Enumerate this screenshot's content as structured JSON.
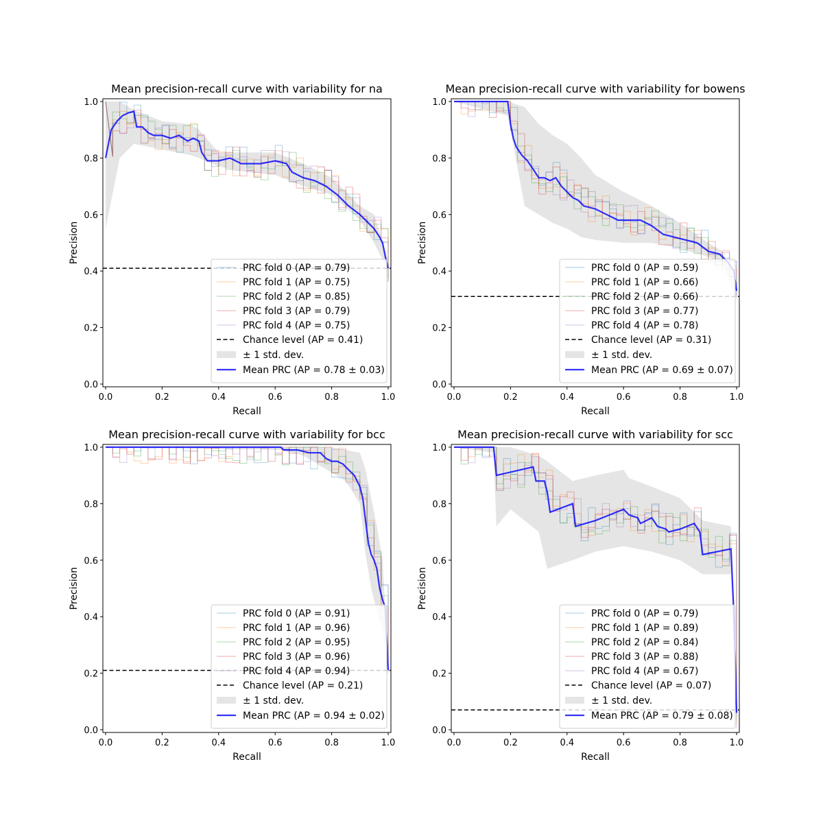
{
  "figure": {
    "background": "#ffffff",
    "colors": {
      "fold0": "#1f77b4",
      "fold1": "#ff7f0e",
      "fold2": "#2ca02c",
      "fold3": "#d62728",
      "fold4": "#9467bd",
      "mean": "#0000ff",
      "chance": "#000000",
      "band": "#cccccc"
    }
  },
  "chart_data": [
    {
      "type": "line",
      "title": "Mean precision-recall curve with variability for na",
      "xlabel": "Recall",
      "ylabel": "Precision",
      "xlim": [
        0,
        1
      ],
      "ylim": [
        0,
        1
      ],
      "xticks": [
        "0.0",
        "0.2",
        "0.4",
        "0.6",
        "0.8",
        "1.0"
      ],
      "yticks": [
        "0.0",
        "0.2",
        "0.4",
        "0.6",
        "0.8",
        "1.0"
      ],
      "legend_position": "lower right",
      "legend": [
        "PRC fold 0 (AP = 0.79)",
        "PRC fold 1 (AP = 0.75)",
        "PRC fold 2 (AP = 0.85)",
        "PRC fold 3 (AP = 0.79)",
        "PRC fold 4 (AP = 0.75)",
        "Chance level (AP = 0.41)",
        "± 1 std. dev.",
        "Mean PRC (AP = 0.78 ± 0.03)"
      ],
      "chance_level": 0.41,
      "mean": {
        "x": [
          0,
          0.02,
          0.04,
          0.06,
          0.08,
          0.1,
          0.11,
          0.13,
          0.15,
          0.17,
          0.2,
          0.23,
          0.26,
          0.29,
          0.31,
          0.33,
          0.34,
          0.36,
          0.4,
          0.44,
          0.48,
          0.5,
          0.55,
          0.6,
          0.64,
          0.66,
          0.7,
          0.74,
          0.78,
          0.82,
          0.86,
          0.9,
          0.93,
          0.95,
          0.97,
          0.98,
          0.99,
          1.0
        ],
        "y": [
          0.8,
          0.9,
          0.93,
          0.95,
          0.96,
          0.965,
          0.91,
          0.91,
          0.89,
          0.88,
          0.88,
          0.87,
          0.88,
          0.86,
          0.87,
          0.86,
          0.82,
          0.79,
          0.79,
          0.8,
          0.78,
          0.78,
          0.78,
          0.79,
          0.78,
          0.75,
          0.73,
          0.72,
          0.7,
          0.67,
          0.63,
          0.6,
          0.57,
          0.55,
          0.52,
          0.5,
          0.45,
          0.41
        ]
      },
      "std_upper": {
        "x": [
          0,
          0.05,
          0.1,
          0.2,
          0.3,
          0.33,
          0.4,
          0.5,
          0.6,
          0.7,
          0.8,
          0.9,
          0.95,
          1.0
        ],
        "y": [
          1.0,
          1.0,
          0.97,
          0.93,
          0.92,
          0.9,
          0.82,
          0.82,
          0.82,
          0.78,
          0.73,
          0.63,
          0.6,
          0.44
        ]
      },
      "std_lower": {
        "x": [
          0,
          0.05,
          0.1,
          0.2,
          0.3,
          0.33,
          0.4,
          0.5,
          0.6,
          0.7,
          0.8,
          0.9,
          0.95,
          1.0
        ],
        "y": [
          0.55,
          0.8,
          0.85,
          0.83,
          0.81,
          0.8,
          0.77,
          0.75,
          0.74,
          0.7,
          0.67,
          0.58,
          0.5,
          0.4
        ]
      }
    },
    {
      "type": "line",
      "title": "Mean precision-recall curve with variability for bowens",
      "xlabel": "Recall",
      "ylabel": "Precision",
      "xlim": [
        0,
        1
      ],
      "ylim": [
        0,
        1
      ],
      "xticks": [
        "0.0",
        "0.2",
        "0.4",
        "0.6",
        "0.8",
        "1.0"
      ],
      "yticks": [
        "0.0",
        "0.2",
        "0.4",
        "0.6",
        "0.8",
        "1.0"
      ],
      "legend_position": "lower right",
      "legend": [
        "PRC fold 0 (AP = 0.59)",
        "PRC fold 1 (AP = 0.66)",
        "PRC fold 2 (AP = 0.66)",
        "PRC fold 3 (AP = 0.77)",
        "PRC fold 4 (AP = 0.78)",
        "Chance level (AP = 0.31)",
        "± 1 std. dev.",
        "Mean PRC (AP = 0.69 ± 0.07)"
      ],
      "chance_level": 0.31,
      "mean": {
        "x": [
          0,
          0.19,
          0.2,
          0.21,
          0.22,
          0.24,
          0.26,
          0.28,
          0.3,
          0.32,
          0.34,
          0.36,
          0.38,
          0.4,
          0.42,
          0.44,
          0.46,
          0.5,
          0.54,
          0.58,
          0.62,
          0.66,
          0.7,
          0.74,
          0.78,
          0.82,
          0.86,
          0.9,
          0.94,
          0.97,
          0.99,
          1.0
        ],
        "y": [
          1.0,
          1.0,
          0.92,
          0.87,
          0.84,
          0.81,
          0.79,
          0.76,
          0.73,
          0.73,
          0.72,
          0.73,
          0.7,
          0.68,
          0.66,
          0.65,
          0.63,
          0.62,
          0.6,
          0.58,
          0.58,
          0.58,
          0.56,
          0.53,
          0.52,
          0.51,
          0.5,
          0.47,
          0.46,
          0.43,
          0.4,
          0.33
        ]
      },
      "std_upper": {
        "x": [
          0,
          0.19,
          0.25,
          0.3,
          0.35,
          0.4,
          0.45,
          0.5,
          0.6,
          0.7,
          0.8,
          0.9,
          0.95,
          1.0
        ],
        "y": [
          1.0,
          1.0,
          0.98,
          0.92,
          0.88,
          0.85,
          0.8,
          0.74,
          0.68,
          0.63,
          0.57,
          0.5,
          0.47,
          0.36
        ]
      },
      "std_lower": {
        "x": [
          0,
          0.19,
          0.25,
          0.3,
          0.35,
          0.4,
          0.45,
          0.5,
          0.6,
          0.7,
          0.8,
          0.9,
          0.95,
          1.0
        ],
        "y": [
          1.0,
          0.95,
          0.63,
          0.6,
          0.57,
          0.55,
          0.52,
          0.51,
          0.5,
          0.5,
          0.48,
          0.45,
          0.43,
          0.3
        ]
      }
    },
    {
      "type": "line",
      "title": "Mean precision-recall curve with variability for bcc",
      "xlabel": "Recall",
      "ylabel": "Precision",
      "xlim": [
        0,
        1
      ],
      "ylim": [
        0,
        1
      ],
      "xticks": [
        "0.0",
        "0.2",
        "0.4",
        "0.6",
        "0.8",
        "1.0"
      ],
      "yticks": [
        "0.0",
        "0.2",
        "0.4",
        "0.6",
        "0.8",
        "1.0"
      ],
      "legend_position": "lower right",
      "legend": [
        "PRC fold 0 (AP = 0.91)",
        "PRC fold 1 (AP = 0.96)",
        "PRC fold 2 (AP = 0.95)",
        "PRC fold 3 (AP = 0.96)",
        "PRC fold 4 (AP = 0.94)",
        "Chance level (AP = 0.21)",
        "± 1 std. dev.",
        "Mean PRC (AP = 0.94 ± 0.02)"
      ],
      "chance_level": 0.21,
      "mean": {
        "x": [
          0,
          0.62,
          0.63,
          0.68,
          0.72,
          0.76,
          0.78,
          0.8,
          0.82,
          0.84,
          0.86,
          0.88,
          0.89,
          0.9,
          0.91,
          0.92,
          0.93,
          0.94,
          0.95,
          0.96,
          0.97,
          0.98,
          0.99,
          1.0
        ],
        "y": [
          1.0,
          1.0,
          0.99,
          0.99,
          0.98,
          0.98,
          0.96,
          0.95,
          0.95,
          0.94,
          0.92,
          0.9,
          0.88,
          0.86,
          0.82,
          0.74,
          0.66,
          0.62,
          0.6,
          0.57,
          0.5,
          0.46,
          0.43,
          0.21
        ]
      },
      "std_upper": {
        "x": [
          0,
          0.62,
          0.7,
          0.8,
          0.85,
          0.9,
          0.92,
          0.94,
          0.96,
          0.98,
          1.0
        ],
        "y": [
          1.0,
          1.0,
          1.0,
          1.0,
          0.99,
          0.98,
          0.92,
          0.82,
          0.72,
          0.6,
          0.24
        ]
      },
      "std_lower": {
        "x": [
          0,
          0.62,
          0.7,
          0.8,
          0.85,
          0.9,
          0.92,
          0.94,
          0.96,
          0.98,
          1.0
        ],
        "y": [
          1.0,
          0.99,
          0.97,
          0.91,
          0.88,
          0.8,
          0.62,
          0.5,
          0.42,
          0.35,
          0.2
        ]
      }
    },
    {
      "type": "line",
      "title": "Mean precision-recall curve with variability for scc",
      "xlabel": "Recall",
      "ylabel": "Precision",
      "xlim": [
        0,
        1
      ],
      "ylim": [
        0,
        1
      ],
      "xticks": [
        "0.0",
        "0.2",
        "0.4",
        "0.6",
        "0.8",
        "1.0"
      ],
      "yticks": [
        "0.0",
        "0.2",
        "0.4",
        "0.6",
        "0.8",
        "1.0"
      ],
      "legend_position": "lower right",
      "legend": [
        "PRC fold 0 (AP = 0.79)",
        "PRC fold 1 (AP = 0.89)",
        "PRC fold 2 (AP = 0.84)",
        "PRC fold 3 (AP = 0.88)",
        "PRC fold 4 (AP = 0.67)",
        "Chance level (AP = 0.07)",
        "± 1 std. dev.",
        "Mean PRC (AP = 0.79 ± 0.08)"
      ],
      "chance_level": 0.07,
      "mean": {
        "x": [
          0,
          0.14,
          0.15,
          0.28,
          0.29,
          0.32,
          0.33,
          0.34,
          0.42,
          0.43,
          0.5,
          0.6,
          0.62,
          0.65,
          0.66,
          0.7,
          0.72,
          0.75,
          0.76,
          0.8,
          0.85,
          0.87,
          0.88,
          0.98,
          0.99,
          1.0
        ],
        "y": [
          1.0,
          1.0,
          0.9,
          0.93,
          0.88,
          0.88,
          0.84,
          0.77,
          0.8,
          0.72,
          0.74,
          0.78,
          0.76,
          0.75,
          0.73,
          0.75,
          0.72,
          0.71,
          0.7,
          0.71,
          0.73,
          0.7,
          0.62,
          0.64,
          0.42,
          0.06
        ]
      },
      "std_upper": {
        "x": [
          0,
          0.14,
          0.2,
          0.3,
          0.33,
          0.42,
          0.5,
          0.6,
          0.62,
          0.7,
          0.8,
          0.88,
          0.98,
          1.0
        ],
        "y": [
          1.0,
          1.0,
          1.0,
          0.97,
          0.95,
          0.88,
          0.9,
          0.92,
          0.89,
          0.86,
          0.82,
          0.74,
          0.72,
          0.2
        ]
      },
      "std_lower": {
        "x": [
          0,
          0.14,
          0.15,
          0.2,
          0.3,
          0.33,
          0.42,
          0.5,
          0.6,
          0.7,
          0.8,
          0.88,
          0.98,
          1.0
        ],
        "y": [
          1.0,
          0.98,
          0.72,
          0.78,
          0.7,
          0.57,
          0.6,
          0.63,
          0.65,
          0.63,
          0.6,
          0.55,
          0.55,
          0.02
        ]
      }
    }
  ]
}
